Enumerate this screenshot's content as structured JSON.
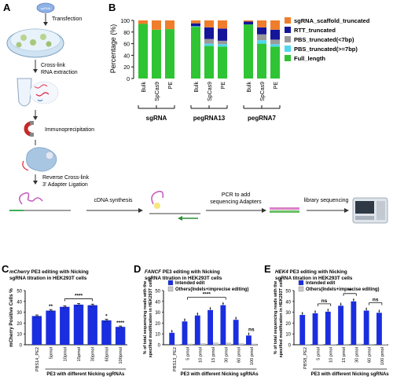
{
  "panel_labels": {
    "a": "A",
    "b": "B",
    "c": "C",
    "d": "D",
    "e": "E"
  },
  "panel_a": {
    "transfection": "Transfection",
    "crosslink_line1": "Cross-link",
    "crosslink_line2": "RNA extraction",
    "immunoprecipitation": "Immunoprecipitation",
    "reverse_line1": "Reverse Cross-link",
    "reverse_line2": "3' Adapter Ligation",
    "cdna": "cDNA synthesis",
    "pcr_line1": "PCR to add",
    "pcr_line2": "sequencing Adapters",
    "library": "library sequencing",
    "tube_label": "spRNA"
  },
  "colors": {
    "orange": "#f07d2c",
    "navy": "#15159a",
    "gray": "#9a9a9a",
    "cyan": "#4fd8ee",
    "green": "#2fc434",
    "blue": "#1a2ee0",
    "lightgray": "#c9c9c9"
  },
  "chart_data": [
    {
      "panel": "B",
      "type": "bar",
      "stacked": true,
      "ylabel": "Percentage (%)",
      "ylim": [
        0,
        100
      ],
      "yticks": [
        0,
        20,
        40,
        60,
        80,
        100
      ],
      "categories": [
        "Bulk",
        "SpCas9",
        "PE",
        "Bulk",
        "SpCas9",
        "PE",
        "Bulk",
        "SpCas9",
        "PE"
      ],
      "groups": [
        {
          "label": "sgRNA",
          "members": [
            0,
            1,
            2
          ]
        },
        {
          "label": "pegRNA13",
          "members": [
            3,
            4,
            5
          ]
        },
        {
          "label": "pegRNA7",
          "members": [
            6,
            7,
            8
          ]
        }
      ],
      "legend_position": "right",
      "series": [
        {
          "name": "Full_length",
          "color": "#2fc434",
          "values": [
            94,
            84,
            85,
            89,
            56,
            55,
            93,
            60,
            55
          ]
        },
        {
          "name": "PBS_truncated(>=7bp)",
          "color": "#4fd8ee",
          "values": [
            0,
            0,
            0,
            1,
            4,
            4,
            0,
            6,
            4
          ]
        },
        {
          "name": "PBS_truncated(<7bp)",
          "color": "#9a9a9a",
          "values": [
            0,
            0,
            0,
            0,
            8,
            6,
            0,
            10,
            8
          ]
        },
        {
          "name": "RTT_truncated",
          "color": "#15159a",
          "values": [
            0,
            0,
            0,
            5,
            20,
            21,
            5,
            12,
            17
          ]
        },
        {
          "name": "sgRNA_scaffold_truncated",
          "color": "#f07d2c",
          "values": [
            6,
            16,
            15,
            5,
            12,
            14,
            2,
            12,
            16
          ]
        }
      ]
    },
    {
      "panel": "C",
      "type": "bar",
      "title_italic": "mCherry",
      "title_rest": " PE3 editing with Nicking",
      "title_line2": "sgRNA titration in HEK293T cells",
      "ylabel": "mCherry Positive Cells %",
      "xlabel": "PE3 with different Nicking sgRNAs",
      "ylim": [
        0,
        50
      ],
      "yticks": [
        0,
        10,
        20,
        30,
        40,
        50
      ],
      "categories": [
        "PBS14_PE2",
        "5pmol",
        "10pmol",
        "15pmol",
        "30pmol",
        "60pmol",
        "100pmol"
      ],
      "values": [
        26.5,
        31.5,
        35,
        37,
        36.5,
        22.5,
        16.5
      ],
      "errors": [
        1,
        1,
        1,
        1,
        1,
        1,
        0.8
      ],
      "annotations": [
        {
          "bar": 1,
          "text": "**"
        },
        {
          "bar": 5,
          "text": "*"
        },
        {
          "bar": 6,
          "text": "****"
        }
      ],
      "bracket": {
        "from": 2,
        "to": 4,
        "text": "****"
      }
    },
    {
      "panel": "D",
      "type": "bar",
      "title_italic": "FANCF",
      "title_rest": " PE3 editing with Nicking",
      "title_line2": "sgRNA titration in HEK293T cells",
      "ylabel_line1": "% of total sequencing reads with the",
      "ylabel_line2": "specified modification in HEK293T cells",
      "xlabel": "PE3 with different Nicking sgRNAs",
      "ylim": [
        0,
        50
      ],
      "yticks": [
        0,
        10,
        20,
        30,
        40,
        50
      ],
      "categories": [
        "PBS13_PE2",
        "5 pmol",
        "10 pmol",
        "15 pmol",
        "30 pmol",
        "60 pmol",
        "100 pmol"
      ],
      "series": [
        {
          "name": "Intended edit",
          "color": "#1a2ee0",
          "values": [
            11,
            21.5,
            27,
            32,
            36.5,
            23,
            8.5
          ]
        },
        {
          "name": "Others(Indels+imprecise editing)",
          "color": "#c9c9c9",
          "values": [
            0.5,
            1,
            1.5,
            2,
            2,
            1.5,
            1
          ]
        }
      ],
      "bracket": {
        "from": 1,
        "to": 4,
        "text": "****"
      },
      "annotations": [
        {
          "bar": 6,
          "text": "ns"
        }
      ]
    },
    {
      "panel": "E",
      "type": "bar",
      "title_italic": "HEK4",
      "title_rest": " PE3 editing with Nicking",
      "title_line2": "sgRNA titration in HEK293T cells",
      "ylabel_line1": "% of total sequencing reads with the",
      "ylabel_line2": "specified modification in HEK293T cells",
      "xlabel": "PE3 with different Nicking sgRNAs",
      "ylim": [
        0,
        50
      ],
      "yticks": [
        0,
        10,
        20,
        30,
        40,
        50
      ],
      "categories": [
        "PBS8_PE2",
        "5 pmol",
        "10 pmol",
        "15 pmol",
        "30 pmol",
        "60 pmol",
        "100 pmol"
      ],
      "series": [
        {
          "name": "Intended edit",
          "color": "#1a2ee0",
          "values": [
            27.5,
            29,
            30.5,
            36,
            40,
            31.5,
            29.5
          ]
        },
        {
          "name": "Others(Indels+imprecise editing)",
          "color": "#c9c9c9",
          "values": [
            0.5,
            0.5,
            0.5,
            0.8,
            1,
            0.8,
            0.5
          ]
        }
      ],
      "brackets": [
        {
          "from": 1,
          "to": 2,
          "text": "ns"
        },
        {
          "from": 3,
          "to": 4,
          "text": "**"
        },
        {
          "from": 5,
          "to": 6,
          "text": "ns"
        }
      ]
    }
  ]
}
